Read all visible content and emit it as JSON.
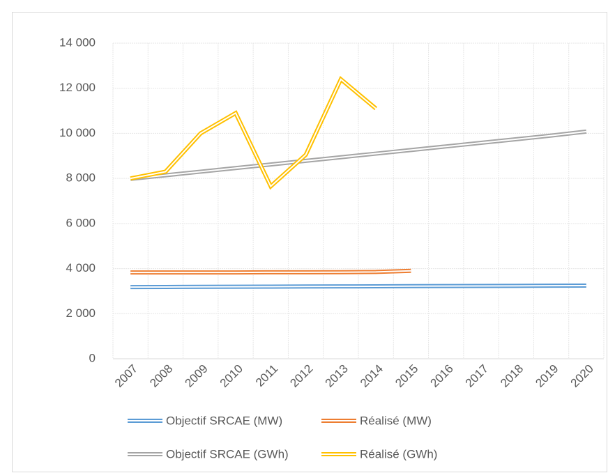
{
  "chart_data": {
    "type": "line",
    "categories": [
      "2007",
      "2008",
      "2009",
      "2010",
      "2011",
      "2012",
      "2013",
      "2014",
      "2015",
      "2016",
      "2017",
      "2018",
      "2019",
      "2020"
    ],
    "series": [
      {
        "name": "Objectif SRCAE (MW)",
        "color": "#5b9bd5",
        "values": [
          3180,
          3185,
          3190,
          3195,
          3200,
          3205,
          3210,
          3215,
          3220,
          3225,
          3230,
          3235,
          3240,
          3245
        ]
      },
      {
        "name": "Réalisé (MW)",
        "color": "#ed7d31",
        "values": [
          3830,
          3830,
          3830,
          3830,
          3835,
          3835,
          3840,
          3850,
          3900,
          null,
          null,
          null,
          null,
          null
        ]
      },
      {
        "name": "Objectif SRCAE (GWh)",
        "color": "#a5a5a5",
        "values": [
          7980,
          8140,
          8300,
          8460,
          8620,
          8780,
          8940,
          9100,
          9260,
          9420,
          9580,
          9740,
          9900,
          10080
        ]
      },
      {
        "name": "Réalisé (GWh)",
        "color": "#ffc000",
        "values": [
          8000,
          8300,
          10000,
          10900,
          7650,
          9050,
          12400,
          11100,
          null,
          null,
          null,
          null,
          null,
          null
        ]
      }
    ],
    "ylim": [
      0,
      14000
    ],
    "yticks": [
      0,
      {
        "value": 2000,
        "label": "2 000"
      },
      {
        "value": 4000,
        "label": "4 000"
      },
      {
        "value": 6000,
        "label": "6 000"
      },
      {
        "value": 8000,
        "label": "8 000"
      },
      {
        "value": 10000,
        "label": "10 000"
      },
      {
        "value": 12000,
        "label": "12 000"
      },
      {
        "value": 14000,
        "label": "14 000"
      }
    ],
    "grid": true
  }
}
